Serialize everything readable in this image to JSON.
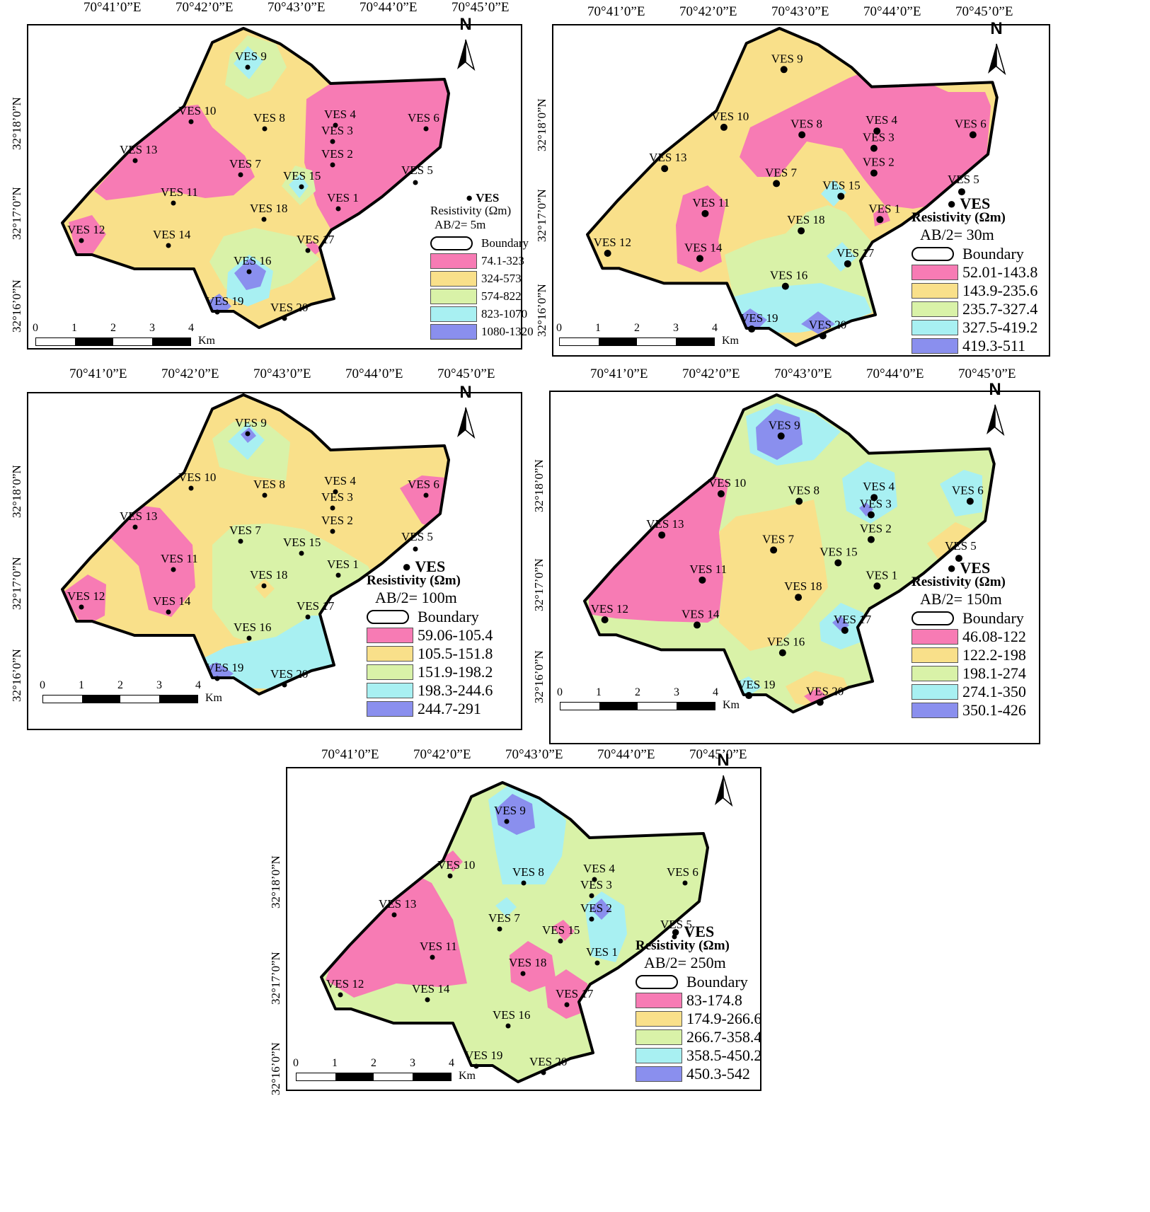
{
  "longitude_labels": [
    "70°41’0”E",
    "70°42’0”E",
    "70°43’0”E",
    "70°44’0”E",
    "70°45’0”E"
  ],
  "latitude_labels": [
    "32°18’0”N",
    "32°17’0”N",
    "32°16’0”N"
  ],
  "ves_stations": [
    "VES 1",
    "VES 2",
    "VES 3",
    "VES 4",
    "VES 5",
    "VES 6",
    "VES 7",
    "VES 8",
    "VES 9",
    "VES 10",
    "VES 11",
    "VES 12",
    "VES 13",
    "VES 14",
    "VES 15",
    "VES 16",
    "VES 17",
    "VES 18",
    "VES 19",
    "VES 20"
  ],
  "north_label": "N",
  "scale_bar": {
    "ticks": [
      "0",
      "1",
      "2",
      "3",
      "4"
    ],
    "unit": "Km"
  },
  "class_colors": [
    "#f77bb4",
    "#f9e08a",
    "#d9f2a8",
    "#a8f0f2",
    "#8a8fee"
  ],
  "legend_common": {
    "point_label": "VES",
    "title": "Resistivity (Ωm)",
    "boundary_label": "Boundary"
  },
  "maps": [
    {
      "depth": "AB/2= 5m",
      "classes": [
        "74.1-323",
        "324-573",
        "574-822",
        "823-1070",
        "1080-1320"
      ]
    },
    {
      "depth": "AB/2= 30m",
      "classes": [
        "52.01-143.8",
        "143.9-235.6",
        "235.7-327.4",
        "327.5-419.2",
        "419.3-511"
      ]
    },
    {
      "depth": "AB/2= 100m",
      "classes": [
        "59.06-105.4",
        "105.5-151.8",
        "151.9-198.2",
        "198.3-244.6",
        "244.7-291"
      ]
    },
    {
      "depth": "AB/2= 150m",
      "classes": [
        "46.08-122",
        "122.2-198",
        "198.1-274",
        "274.1-350",
        "350.1-426"
      ]
    },
    {
      "depth": "AB/2= 250m",
      "classes": [
        "83-174.8",
        "174.9-266.6",
        "266.7-358.4",
        "358.5-450.2",
        "450.3-542"
      ]
    }
  ]
}
